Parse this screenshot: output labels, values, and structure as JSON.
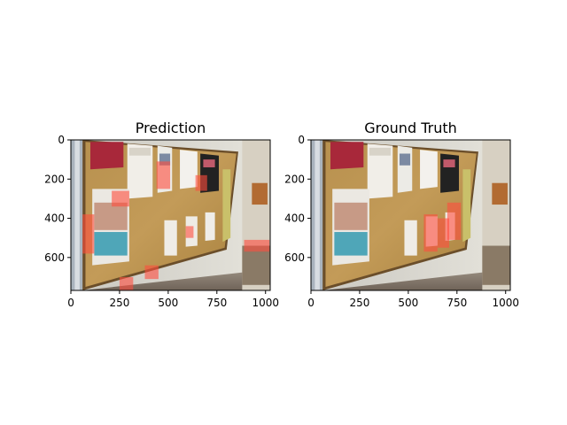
{
  "chart_data": [
    {
      "type": "image",
      "title": "Prediction",
      "xlim": [
        0,
        1024
      ],
      "ylim": [
        768,
        0
      ],
      "xticks": [
        0,
        250,
        500,
        750,
        1000
      ],
      "yticks": [
        0,
        200,
        400,
        600
      ],
      "xtick_labels": [
        "0",
        "250",
        "500",
        "750",
        "1000"
      ],
      "ytick_labels": [
        "0",
        "200",
        "400",
        "600"
      ],
      "overlay_color": "#ff4d3d",
      "overlay_regions": [
        {
          "x": 440,
          "y": 110,
          "w": 70,
          "h": 140
        },
        {
          "x": 640,
          "y": 180,
          "w": 60,
          "h": 80
        },
        {
          "x": 60,
          "y": 380,
          "w": 60,
          "h": 200
        },
        {
          "x": 210,
          "y": 260,
          "w": 90,
          "h": 80
        },
        {
          "x": 590,
          "y": 440,
          "w": 40,
          "h": 60
        },
        {
          "x": 890,
          "y": 510,
          "w": 130,
          "h": 60
        },
        {
          "x": 380,
          "y": 640,
          "w": 70,
          "h": 70
        },
        {
          "x": 250,
          "y": 700,
          "w": 70,
          "h": 68
        }
      ]
    },
    {
      "type": "image",
      "title": "Ground Truth",
      "xlim": [
        0,
        1024
      ],
      "ylim": [
        768,
        0
      ],
      "xticks": [
        0,
        250,
        500,
        750,
        1000
      ],
      "yticks": [
        0,
        200,
        400,
        600
      ],
      "xtick_labels": [
        "0",
        "250",
        "500",
        "750",
        "1000"
      ],
      "ytick_labels": [
        "0",
        "200",
        "400",
        "600"
      ],
      "overlay_color": "#ff4d3d",
      "overlay_regions": [
        {
          "x": 580,
          "y": 380,
          "w": 70,
          "h": 190
        },
        {
          "x": 650,
          "y": 400,
          "w": 60,
          "h": 150
        },
        {
          "x": 700,
          "y": 320,
          "w": 70,
          "h": 190
        }
      ]
    }
  ]
}
